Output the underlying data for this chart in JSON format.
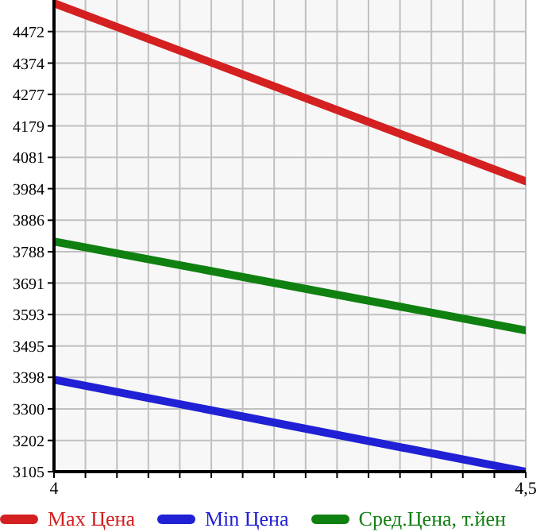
{
  "chart_data": {
    "type": "line",
    "x": [
      4,
      4.5
    ],
    "series": [
      {
        "name": "Max Цена",
        "color": "#d42020",
        "values": [
          4560,
          4007
        ]
      },
      {
        "name": "Min Цена",
        "color": "#2020d4",
        "values": [
          3391,
          3105
        ]
      },
      {
        "name": "Сред.Цена, т.йен",
        "color": "#108010",
        "values": [
          3820,
          3544
        ]
      }
    ],
    "xlim": [
      4,
      4.5
    ],
    "xticks": [
      4,
      {
        "value": 4.0333,
        "label": null
      },
      {
        "value": 4.0667,
        "label": null
      },
      {
        "value": 4.1,
        "label": null
      },
      {
        "value": 4.1333,
        "label": null
      },
      {
        "value": 4.1667,
        "label": null
      },
      {
        "value": 4.2,
        "label": null
      },
      {
        "value": 4.2333,
        "label": null
      },
      {
        "value": 4.2667,
        "label": null
      },
      {
        "value": 4.3,
        "label": null
      },
      {
        "value": 4.3333,
        "label": null
      },
      {
        "value": 4.3667,
        "label": null
      },
      {
        "value": 4.4,
        "label": null
      },
      {
        "value": 4.4333,
        "label": null
      },
      {
        "value": 4.4667,
        "label": null
      },
      {
        "value": 4.5,
        "label": "4,5"
      }
    ],
    "ylim": [
      3105,
      4570
    ],
    "yticks": [
      3105,
      3202,
      3300,
      3398,
      3495,
      3593,
      3691,
      3788,
      3886,
      3984,
      4081,
      4179,
      4277,
      4374,
      4472
    ],
    "grid": true,
    "legend": "bottom",
    "marker": "none",
    "line_style": "solid"
  }
}
